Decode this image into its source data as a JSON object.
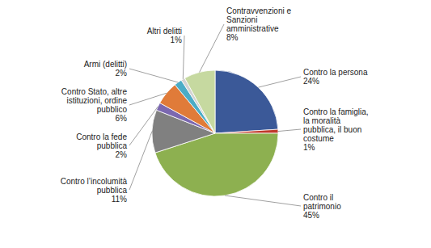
{
  "chart_data": {
    "type": "pie",
    "categories": [
      "Contro la persona\n24%",
      "Contro la famiglia,\nla moralità\npubblica, il buon\ncostume\n1%",
      "Contro il\npatrimonio\n45%",
      "Contro l’incolumità\npubblica\n11%",
      "Contro la fede\npubblica\n2%",
      "Contro Stato, altre\nistituzioni, ordine\npubblico\n6%",
      "Armi (delitti)\n2%",
      "Altri delitti\n1%",
      "Contravvenzioni e\nSanzioni\namministrative\n8%"
    ],
    "values": [
      24,
      1,
      45,
      11,
      2,
      6,
      2,
      1,
      8
    ],
    "colors": [
      "#3b5998",
      "#c0392b",
      "#8db050",
      "#808080",
      "#7b68b0",
      "#e07b39",
      "#4bacc6",
      "#d3d3d3",
      "#c6d9a0"
    ]
  }
}
